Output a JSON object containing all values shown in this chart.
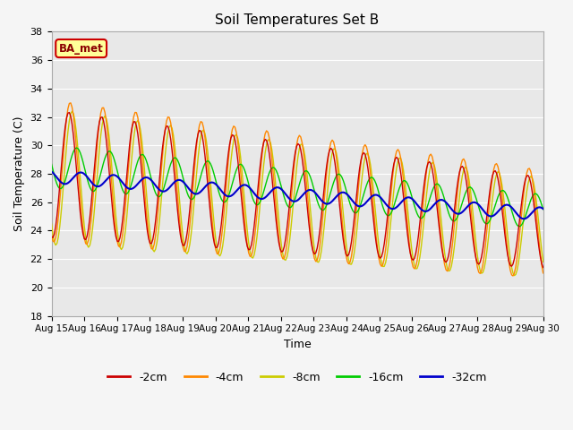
{
  "title": "Soil Temperatures Set B",
  "xlabel": "Time",
  "ylabel": "Soil Temperature (C)",
  "ylim": [
    18,
    38
  ],
  "yticks": [
    18,
    20,
    22,
    24,
    26,
    28,
    30,
    32,
    34,
    36,
    38
  ],
  "colors": {
    "-2cm": "#cc0000",
    "-4cm": "#ff8800",
    "-8cm": "#cccc00",
    "-16cm": "#00cc00",
    "-32cm": "#0000cc"
  },
  "fig_bg": "#f5f5f5",
  "plot_bg": "#e8e8e8",
  "annotation_text": "BA_met",
  "annotation_bg": "#ffff99",
  "annotation_border": "#cc0000",
  "grid_color": "#ffffff",
  "n_days": 15,
  "start_day": 15
}
